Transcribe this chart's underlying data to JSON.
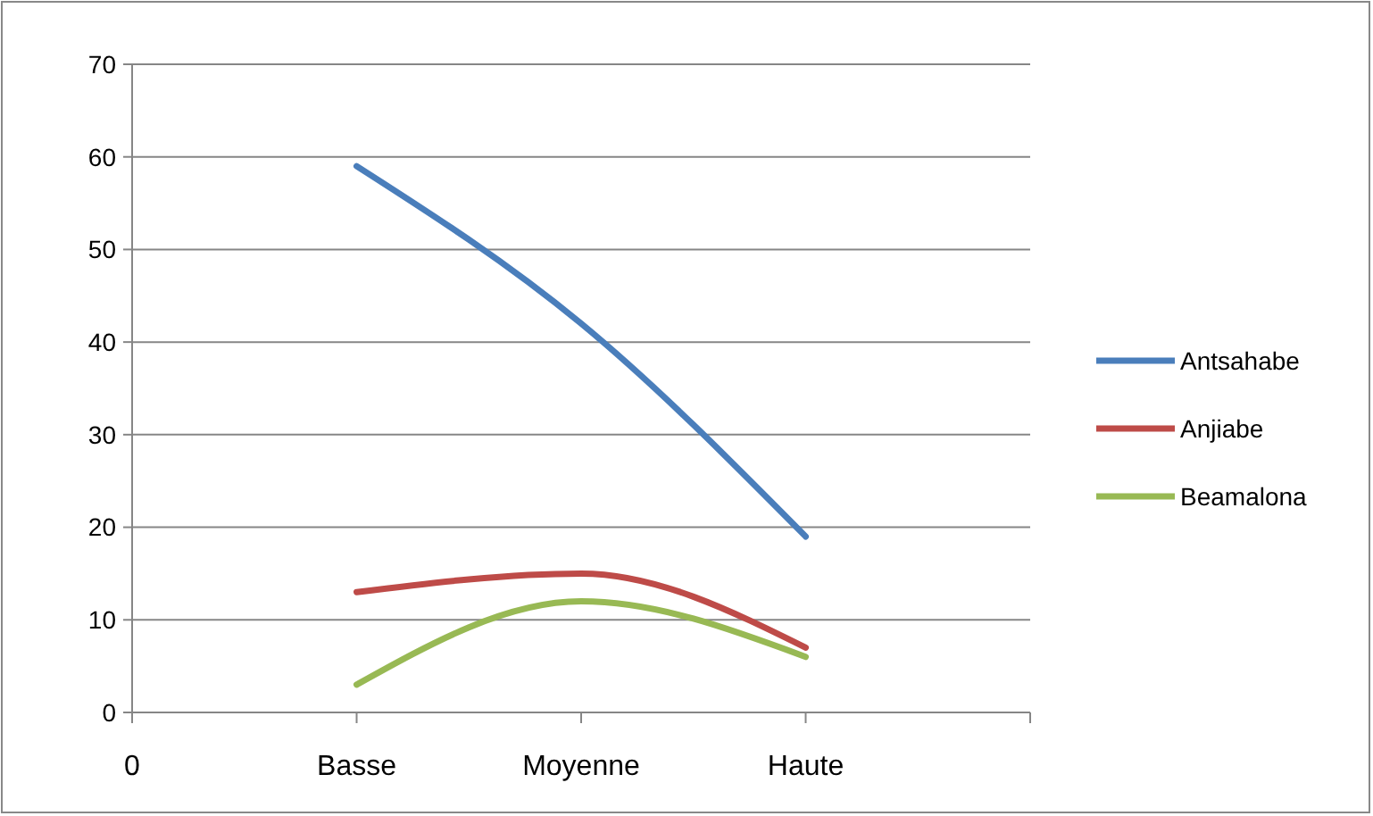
{
  "chart_data": {
    "type": "line",
    "categories": [
      "0",
      "Basse",
      "Moyenne",
      "Haute",
      null
    ],
    "ylim": [
      0,
      70
    ],
    "yticks": [
      0,
      10,
      20,
      30,
      40,
      50,
      60,
      70
    ],
    "grid": "y",
    "legend": "right",
    "marker": "none",
    "line_style": "solid",
    "series": [
      {
        "name": "Antsahabe",
        "color": "#4a7ebb",
        "values": [
          null,
          59,
          42,
          19,
          null
        ]
      },
      {
        "name": "Anjiabe",
        "color": "#be4b48",
        "values": [
          null,
          13,
          15,
          7,
          null
        ]
      },
      {
        "name": "Beamalona",
        "color": "#98b954",
        "values": [
          null,
          3,
          12,
          6,
          null
        ]
      }
    ]
  }
}
